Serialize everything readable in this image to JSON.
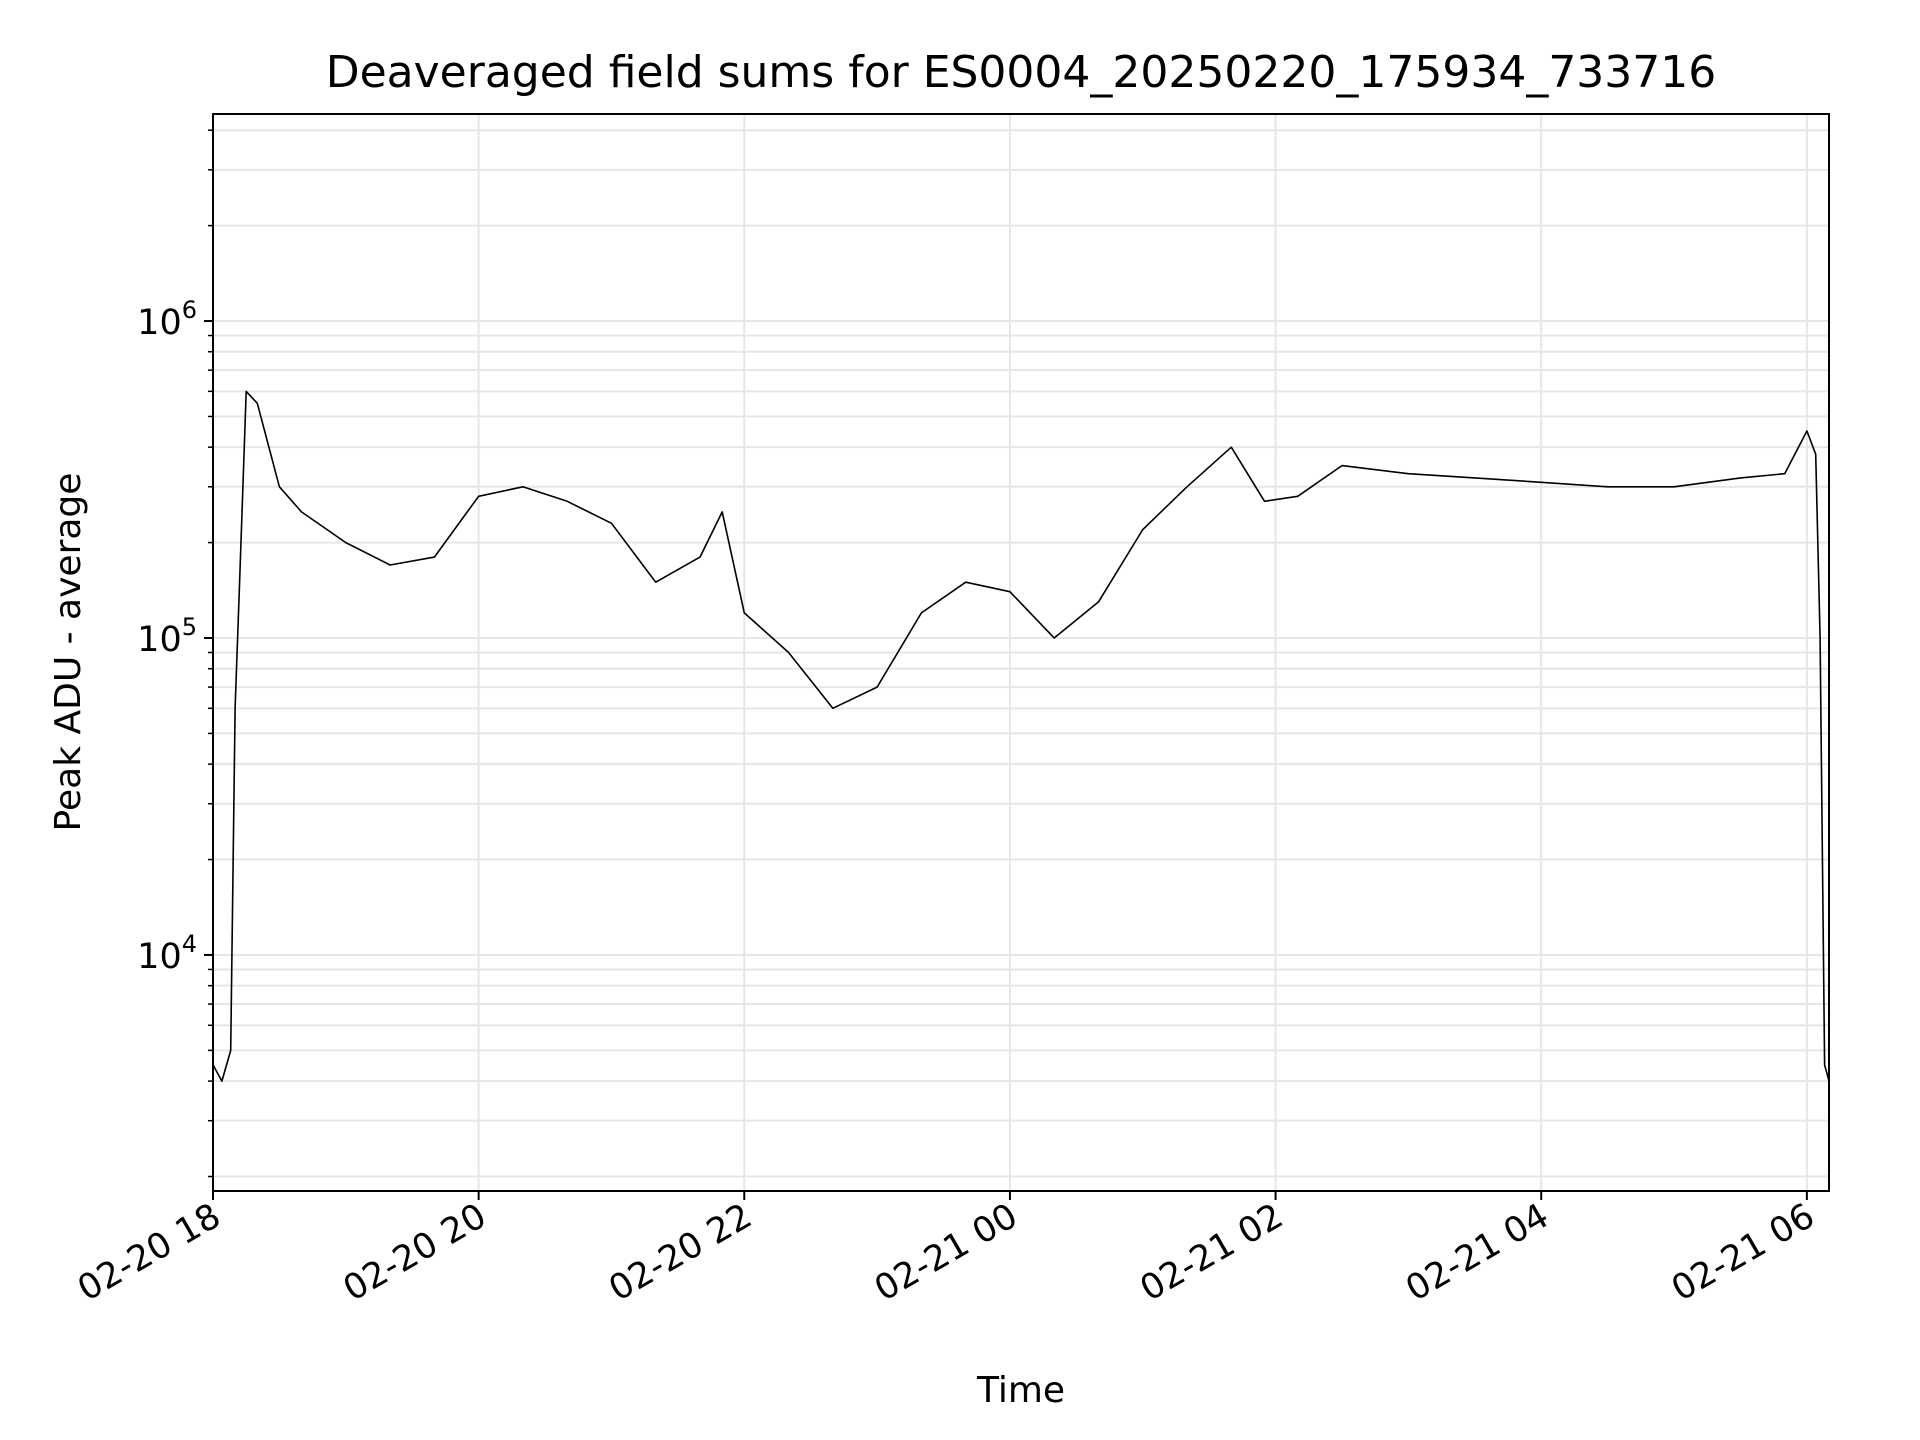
{
  "chart_data": {
    "type": "line",
    "title": "Deaveraged field sums for ES0004_20250220_175934_733716",
    "xlabel": "Time",
    "ylabel": "Peak ADU - average",
    "yscale": "log",
    "grid": true,
    "x_tick_labels": [
      "02-20 18",
      "02-20 20",
      "02-20 22",
      "02-21 00",
      "02-21 02",
      "02-21 04",
      "02-21 06"
    ],
    "x_ticks": [
      "2025-02-20 18:00",
      "2025-02-20 20:00",
      "2025-02-20 22:00",
      "2025-02-21 00:00",
      "2025-02-21 02:00",
      "2025-02-21 04:00",
      "2025-02-21 06:00"
    ],
    "y_tick_labels": [
      {
        "base": "10",
        "exp": "4",
        "value": 10000
      },
      {
        "base": "10",
        "exp": "5",
        "value": 100000
      },
      {
        "base": "10",
        "exp": "6",
        "value": 1000000
      }
    ],
    "xlim": [
      "2025-02-20 18:00",
      "2025-02-21 06:10"
    ],
    "ylim": [
      1800,
      4500000
    ],
    "line_color": "#000000",
    "series": [
      {
        "x": [
          "2025-02-20 18:00",
          "2025-02-20 18:04",
          "2025-02-20 18:08",
          "2025-02-20 18:10",
          "2025-02-20 18:12",
          "2025-02-20 18:15",
          "2025-02-20 18:20",
          "2025-02-20 18:30",
          "2025-02-20 18:40",
          "2025-02-20 19:00",
          "2025-02-20 19:20",
          "2025-02-20 19:40",
          "2025-02-20 20:00",
          "2025-02-20 20:20",
          "2025-02-20 20:40",
          "2025-02-20 21:00",
          "2025-02-20 21:20",
          "2025-02-20 21:40",
          "2025-02-20 21:50",
          "2025-02-20 22:00",
          "2025-02-20 22:20",
          "2025-02-20 22:40",
          "2025-02-20 23:00",
          "2025-02-20 23:20",
          "2025-02-20 23:40",
          "2025-02-21 00:00",
          "2025-02-21 00:20",
          "2025-02-21 00:40",
          "2025-02-21 01:00",
          "2025-02-21 01:20",
          "2025-02-21 01:40",
          "2025-02-21 01:55",
          "2025-02-21 02:10",
          "2025-02-21 02:30",
          "2025-02-21 03:00",
          "2025-02-21 03:30",
          "2025-02-21 04:00",
          "2025-02-21 04:30",
          "2025-02-21 05:00",
          "2025-02-21 05:30",
          "2025-02-21 05:50",
          "2025-02-21 06:00",
          "2025-02-21 06:04",
          "2025-02-21 06:06",
          "2025-02-21 06:08",
          "2025-02-21 06:10"
        ],
        "y": [
          4500,
          4000,
          5000,
          60000,
          150000,
          600000,
          550000,
          300000,
          250000,
          200000,
          170000,
          180000,
          280000,
          300000,
          270000,
          230000,
          150000,
          180000,
          250000,
          120000,
          90000,
          60000,
          70000,
          120000,
          150000,
          140000,
          100000,
          130000,
          220000,
          300000,
          400000,
          270000,
          280000,
          350000,
          330000,
          320000,
          310000,
          300000,
          300000,
          320000,
          330000,
          450000,
          380000,
          100000,
          4500,
          4000
        ]
      }
    ]
  }
}
